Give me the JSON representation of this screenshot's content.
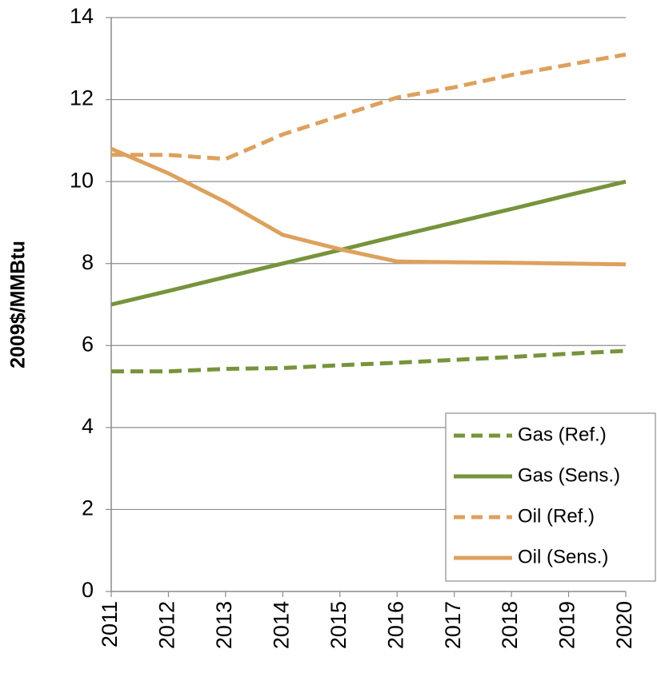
{
  "chart_data": {
    "type": "line",
    "y_label": "2009$/MMBtu",
    "x": [
      2011,
      2012,
      2013,
      2014,
      2015,
      2016,
      2017,
      2018,
      2019,
      2020
    ],
    "xlim": [
      2011,
      2020
    ],
    "xticks": [
      2011,
      2012,
      2013,
      2014,
      2015,
      2016,
      2017,
      2018,
      2019,
      2020
    ],
    "ylim": [
      0,
      14
    ],
    "yticks": [
      0,
      2,
      4,
      6,
      8,
      10,
      12,
      14
    ],
    "grid": true,
    "legend": "lower right",
    "series": [
      {
        "name": "Gas (Ref.)",
        "color": "#77933c",
        "dashed": true,
        "values": [
          5.37,
          5.37,
          5.43,
          5.45,
          5.52,
          5.58,
          5.65,
          5.72,
          5.8,
          5.87
        ]
      },
      {
        "name": "Gas (Sens.)",
        "color": "#77933c",
        "dashed": false,
        "values": [
          7.0,
          7.33,
          7.67,
          8.0,
          8.33,
          8.67,
          9.0,
          9.33,
          9.67,
          10.0
        ]
      },
      {
        "name": "Oil (Ref.)",
        "color": "#dda15e",
        "dashed": true,
        "values": [
          10.65,
          10.65,
          10.55,
          11.15,
          11.6,
          12.05,
          12.3,
          12.6,
          12.85,
          13.1
        ]
      },
      {
        "name": "Oil (Sens.)",
        "color": "#dda15e",
        "dashed": false,
        "values": [
          10.8,
          10.2,
          9.5,
          8.7,
          8.35,
          8.05,
          8.03,
          8.02,
          8.0,
          7.98
        ]
      }
    ]
  }
}
